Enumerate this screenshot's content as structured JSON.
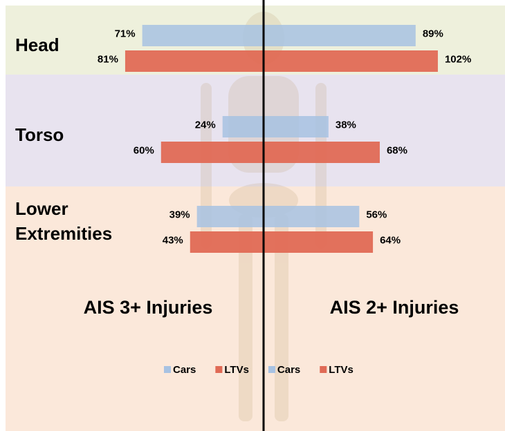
{
  "chart_data": {
    "type": "butterfly-bar",
    "categories": [
      "Head",
      "Torso",
      "Lower Extremities"
    ],
    "panels": [
      {
        "title": "AIS 3+ Injuries",
        "side": "left",
        "series": [
          {
            "name": "Cars",
            "color": "#a7c2e2",
            "values": [
              71,
              24,
              39
            ],
            "value_labels": [
              "71%",
              "24%",
              "39%"
            ]
          },
          {
            "name": "LTVs",
            "color": "#e06a55",
            "values": [
              81,
              60,
              43
            ],
            "value_labels": [
              "81%",
              "60%",
              "43%"
            ]
          }
        ]
      },
      {
        "title": "AIS 2+ Injuries",
        "side": "right",
        "series": [
          {
            "name": "Cars",
            "color": "#a7c2e2",
            "values": [
              89,
              38,
              56
            ],
            "value_labels": [
              "89%",
              "38%",
              "56%"
            ]
          },
          {
            "name": "LTVs",
            "color": "#e06a55",
            "values": [
              102,
              68,
              64
            ],
            "value_labels": [
              "102%",
              "68%",
              "64%"
            ]
          }
        ]
      }
    ]
  }
}
